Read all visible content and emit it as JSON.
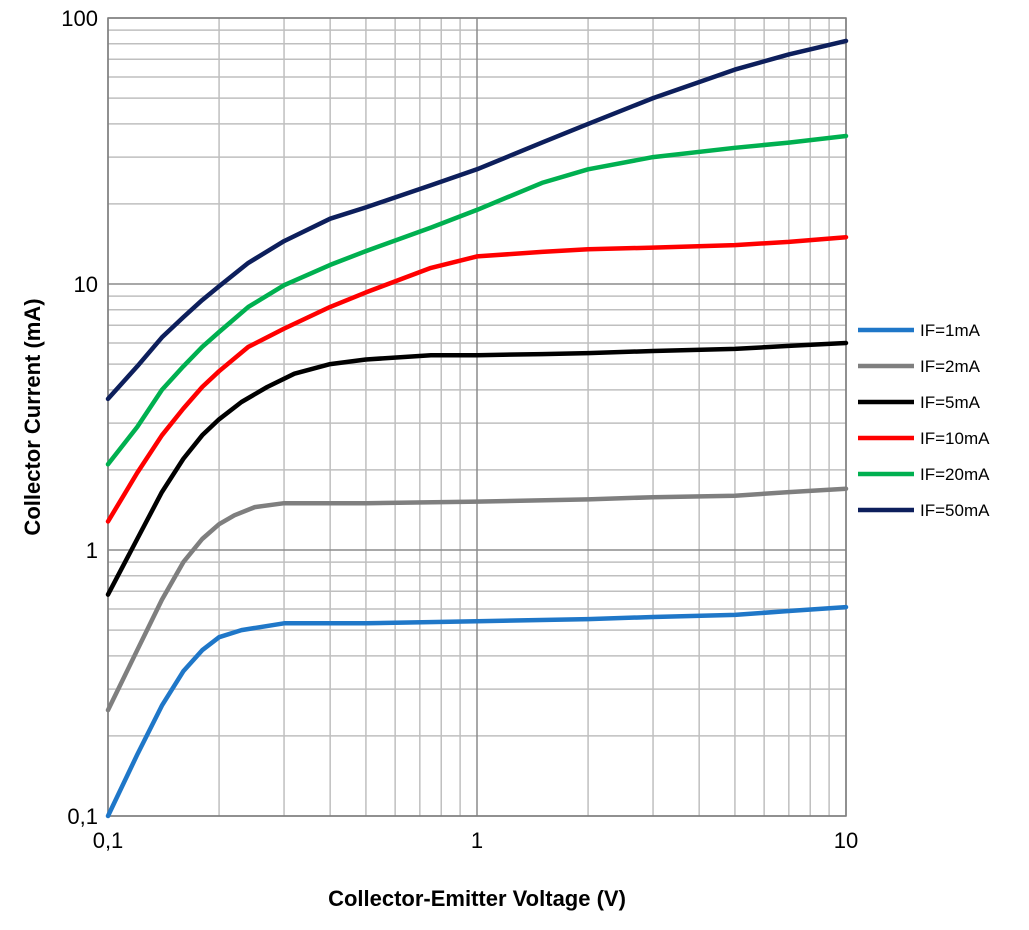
{
  "chart_data": {
    "type": "line",
    "xlabel": "Collector-Emitter Voltage (V)",
    "ylabel": "Collector Current  (mA)",
    "x_scale": "log",
    "y_scale": "log",
    "xlim": [
      0.1,
      10
    ],
    "ylim": [
      0.1,
      100
    ],
    "x_ticks": [
      0.1,
      1,
      10
    ],
    "x_tick_labels": [
      "0,1",
      "1",
      "10"
    ],
    "y_ticks": [
      0.1,
      1,
      10,
      100
    ],
    "y_tick_labels": [
      "0,1",
      "1",
      "10",
      "100"
    ],
    "grid": true,
    "legend_position": "right",
    "series": [
      {
        "name": "IF=1mA",
        "color": "#1f77c8",
        "x": [
          0.1,
          0.12,
          0.14,
          0.16,
          0.18,
          0.2,
          0.23,
          0.3,
          0.5,
          1,
          2,
          3,
          5,
          7,
          10
        ],
        "y": [
          0.1,
          0.17,
          0.26,
          0.35,
          0.42,
          0.47,
          0.5,
          0.53,
          0.53,
          0.54,
          0.55,
          0.56,
          0.57,
          0.59,
          0.61
        ]
      },
      {
        "name": "IF=2mA",
        "color": "#7f7f7f",
        "x": [
          0.1,
          0.12,
          0.14,
          0.16,
          0.18,
          0.2,
          0.22,
          0.25,
          0.3,
          0.5,
          1,
          2,
          3,
          5,
          7,
          10
        ],
        "y": [
          0.25,
          0.42,
          0.65,
          0.9,
          1.1,
          1.25,
          1.35,
          1.45,
          1.5,
          1.5,
          1.52,
          1.55,
          1.58,
          1.6,
          1.65,
          1.7
        ]
      },
      {
        "name": "IF=5mA",
        "color": "#000000",
        "x": [
          0.1,
          0.12,
          0.14,
          0.16,
          0.18,
          0.2,
          0.23,
          0.27,
          0.32,
          0.4,
          0.5,
          0.75,
          1,
          1.5,
          2,
          3,
          5,
          7,
          10
        ],
        "y": [
          0.68,
          1.1,
          1.65,
          2.2,
          2.7,
          3.1,
          3.6,
          4.1,
          4.6,
          5.0,
          5.2,
          5.4,
          5.4,
          5.45,
          5.5,
          5.6,
          5.7,
          5.85,
          6.0
        ]
      },
      {
        "name": "IF=10mA",
        "color": "#ff0000",
        "x": [
          0.1,
          0.12,
          0.14,
          0.16,
          0.18,
          0.2,
          0.24,
          0.3,
          0.4,
          0.5,
          0.75,
          1,
          1.5,
          2,
          3,
          5,
          7,
          10
        ],
        "y": [
          1.28,
          1.95,
          2.7,
          3.4,
          4.1,
          4.7,
          5.8,
          6.8,
          8.2,
          9.3,
          11.5,
          12.7,
          13.2,
          13.5,
          13.7,
          14.0,
          14.4,
          15.0
        ]
      },
      {
        "name": "IF=20mA",
        "color": "#00b050",
        "x": [
          0.1,
          0.12,
          0.14,
          0.16,
          0.18,
          0.2,
          0.24,
          0.3,
          0.4,
          0.5,
          0.75,
          1,
          1.5,
          2,
          3,
          5,
          7,
          10
        ],
        "y": [
          2.1,
          2.9,
          4.0,
          4.9,
          5.8,
          6.6,
          8.2,
          9.9,
          11.8,
          13.3,
          16.3,
          19.0,
          24.0,
          27.0,
          30.0,
          32.5,
          34.0,
          36.0
        ]
      },
      {
        "name": "IF=50mA",
        "color": "#0d1f5c",
        "x": [
          0.1,
          0.12,
          0.14,
          0.16,
          0.18,
          0.2,
          0.24,
          0.3,
          0.4,
          0.5,
          0.75,
          1,
          1.5,
          2,
          3,
          5,
          7,
          10
        ],
        "y": [
          3.7,
          4.9,
          6.3,
          7.5,
          8.7,
          9.8,
          12.0,
          14.5,
          17.6,
          19.4,
          23.5,
          27.0,
          34.0,
          40.0,
          50.0,
          64.0,
          73.0,
          82.0
        ]
      }
    ]
  }
}
